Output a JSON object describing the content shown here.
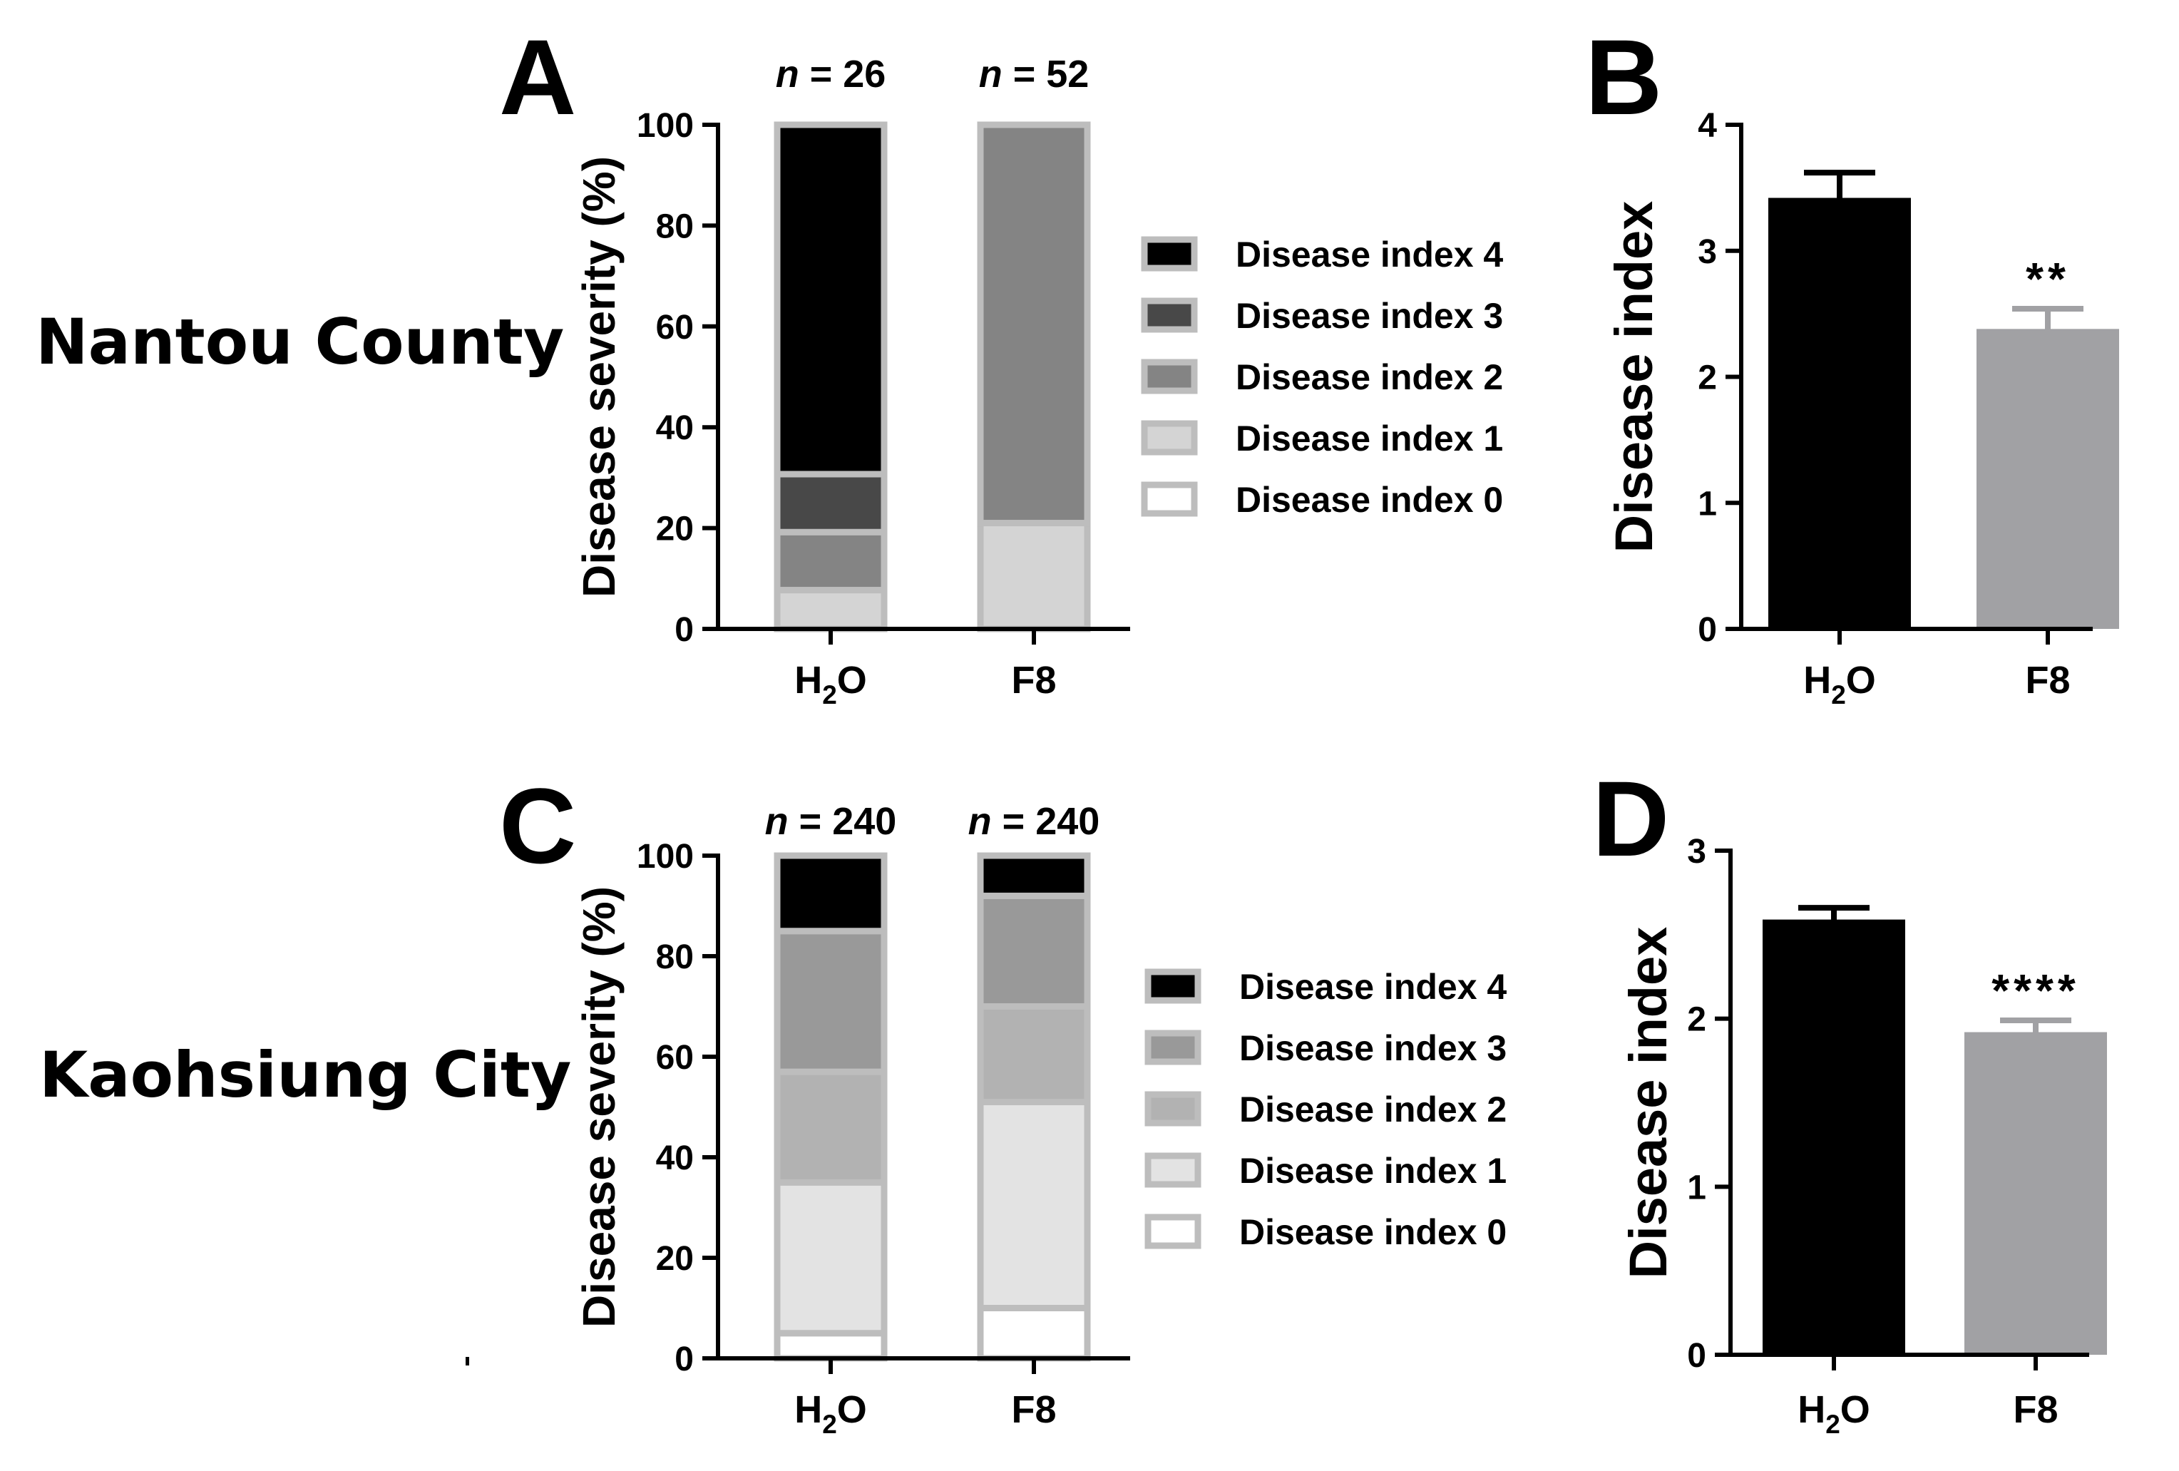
{
  "figure": {
    "regions": [
      "Nantou County",
      "Kaohsiung City"
    ]
  },
  "chart_data": [
    {
      "panel": "A",
      "type": "bar",
      "stacked": true,
      "region": "Nantou County",
      "categories": [
        "H2O",
        "F8"
      ],
      "n_labels": [
        "n = 26",
        "n = 52"
      ],
      "ylabel": "Disease severity (%)",
      "xlabel": "",
      "ylim": [
        0,
        100
      ],
      "yticks": [
        0,
        20,
        40,
        60,
        80,
        100
      ],
      "legend_position": "right",
      "series": [
        {
          "name": "Disease index 0",
          "color": "#ffffff",
          "values": [
            0,
            0
          ]
        },
        {
          "name": "Disease index 1",
          "color": "#d4d4d4",
          "values": [
            7.7,
            21
          ]
        },
        {
          "name": "Disease index 2",
          "color": "#848484",
          "values": [
            11.5,
            79
          ]
        },
        {
          "name": "Disease index 3",
          "color": "#484848",
          "values": [
            11.5,
            0
          ]
        },
        {
          "name": "Disease index 4",
          "color": "#000000",
          "values": [
            69.3,
            0
          ]
        }
      ]
    },
    {
      "panel": "B",
      "type": "bar",
      "categories": [
        "H2O",
        "F8"
      ],
      "values": [
        3.42,
        2.38
      ],
      "errors": [
        0.2,
        0.16
      ],
      "significance": [
        "",
        "**"
      ],
      "colors": [
        "#000000",
        "#a1a1a4"
      ],
      "ylabel": "Disease index",
      "xlabel": "",
      "ylim": [
        0,
        4
      ],
      "yticks": [
        0,
        1,
        2,
        3,
        4
      ]
    },
    {
      "panel": "C",
      "type": "bar",
      "stacked": true,
      "region": "Kaohsiung City",
      "categories": [
        "H2O",
        "F8"
      ],
      "n_labels": [
        "n = 240",
        "n = 240"
      ],
      "ylabel": "Disease severity (%)",
      "xlabel": "",
      "ylim": [
        0,
        100
      ],
      "yticks": [
        0,
        20,
        40,
        60,
        80,
        100
      ],
      "legend_position": "right",
      "series": [
        {
          "name": "Disease index 0",
          "color": "#ffffff",
          "values": [
            5,
            10
          ]
        },
        {
          "name": "Disease index 1",
          "color": "#e3e3e3",
          "values": [
            30,
            41
          ]
        },
        {
          "name": "Disease index 2",
          "color": "#b2b2b2",
          "values": [
            22,
            19
          ]
        },
        {
          "name": "Disease index 3",
          "color": "#999999",
          "values": [
            28,
            22
          ]
        },
        {
          "name": "Disease index 4",
          "color": "#000000",
          "values": [
            15,
            8
          ]
        }
      ]
    },
    {
      "panel": "D",
      "type": "bar",
      "categories": [
        "H2O",
        "F8"
      ],
      "values": [
        2.59,
        1.92
      ],
      "errors": [
        0.07,
        0.07
      ],
      "significance": [
        "",
        "****"
      ],
      "colors": [
        "#000000",
        "#a1a1a4"
      ],
      "ylabel": "Disease index",
      "xlabel": "",
      "ylim": [
        0,
        3
      ],
      "yticks": [
        0,
        1,
        2,
        3
      ]
    }
  ]
}
